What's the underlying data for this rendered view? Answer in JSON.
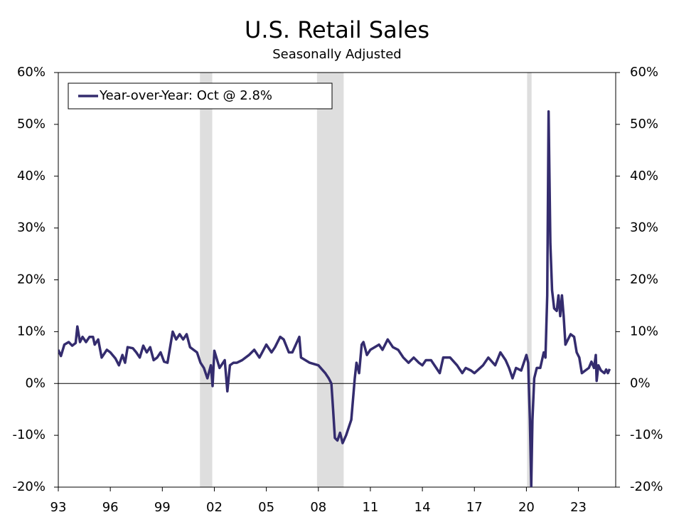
{
  "chart_data": {
    "type": "line",
    "title": "U.S. Retail Sales",
    "subtitle": "Seasonally Adjusted",
    "x": [
      1993.0,
      1993.15,
      1993.35,
      1993.6,
      1993.8,
      1994.0,
      1994.1,
      1994.25,
      1994.4,
      1994.6,
      1994.8,
      1995.0,
      1995.1,
      1995.3,
      1995.5,
      1995.8,
      1996.0,
      1996.3,
      1996.5,
      1996.7,
      1996.85,
      1997.0,
      1997.3,
      1997.5,
      1997.7,
      1997.9,
      1998.1,
      1998.3,
      1998.5,
      1998.7,
      1998.9,
      1999.1,
      1999.3,
      1999.6,
      1999.8,
      2000.0,
      2000.2,
      2000.4,
      2000.6,
      2000.8,
      2001.0,
      2001.2,
      2001.4,
      2001.6,
      2001.8,
      2001.9,
      2002.0,
      2002.3,
      2002.6,
      2002.75,
      2002.9,
      2003.1,
      2003.3,
      2003.6,
      2004.0,
      2004.3,
      2004.6,
      2005.0,
      2005.3,
      2005.5,
      2005.8,
      2006.0,
      2006.3,
      2006.5,
      2006.9,
      2007.0,
      2007.5,
      2008.0,
      2008.4,
      2008.6,
      2008.75,
      2008.85,
      2008.95,
      2009.1,
      2009.25,
      2009.4,
      2009.6,
      2009.9,
      2010.1,
      2010.2,
      2010.35,
      2010.5,
      2010.6,
      2010.8,
      2011.0,
      2011.5,
      2011.7,
      2012.0,
      2012.3,
      2012.6,
      2012.9,
      2013.2,
      2013.5,
      2013.8,
      2014.0,
      2014.2,
      2014.5,
      2014.8,
      2015.0,
      2015.2,
      2015.6,
      2016.0,
      2016.3,
      2016.5,
      2016.8,
      2017.0,
      2017.5,
      2017.8,
      2018.2,
      2018.5,
      2018.8,
      2019.0,
      2019.2,
      2019.4,
      2019.7,
      2020.0,
      2020.1,
      2020.2,
      2020.28,
      2020.35,
      2020.45,
      2020.6,
      2020.8,
      2021.0,
      2021.1,
      2021.2,
      2021.28,
      2021.38,
      2021.48,
      2021.6,
      2021.75,
      2021.85,
      2021.95,
      2022.05,
      2022.15,
      2022.25,
      2022.4,
      2022.55,
      2022.75,
      2022.9,
      2023.05,
      2023.2,
      2023.4,
      2023.6,
      2023.75,
      2023.9,
      2024.0,
      2024.05,
      2024.15,
      2024.3,
      2024.5,
      2024.6,
      2024.7,
      2024.8
    ],
    "series": [
      {
        "name": "Year-over-Year: Oct @ 2.8%",
        "color": "#342c6e",
        "values": [
          6.5,
          5.3,
          7.5,
          8,
          7.3,
          7.8,
          11,
          8,
          9,
          8,
          9,
          9,
          7.5,
          8.5,
          5,
          6.5,
          6,
          4.8,
          3.5,
          5.5,
          4,
          7,
          6.8,
          6,
          5,
          7.3,
          6,
          7,
          4.5,
          5,
          6,
          4.2,
          4,
          10,
          8.5,
          9.5,
          8.5,
          9.5,
          7,
          6.5,
          6,
          4,
          3,
          1,
          3.5,
          -0.5,
          6.3,
          3,
          4.5,
          -1.5,
          3.5,
          4,
          4,
          4.5,
          5.5,
          6.5,
          5,
          7.5,
          6,
          7,
          9,
          8.5,
          6,
          6,
          9,
          5,
          4,
          3.5,
          2,
          1,
          0,
          -5,
          -10.5,
          -11,
          -9.5,
          -11.5,
          -10,
          -7,
          1,
          4,
          2,
          7.5,
          8,
          5.5,
          6.5,
          7.5,
          6.5,
          8.5,
          7,
          6.5,
          5,
          4,
          5,
          4,
          3.5,
          4.5,
          4.5,
          3,
          2,
          5,
          5,
          3.5,
          2,
          3,
          2.5,
          2,
          3.5,
          5,
          3.5,
          6,
          4.5,
          3,
          1,
          3,
          2.5,
          5.5,
          4,
          -7,
          -19.9,
          -7,
          1,
          3,
          3,
          6,
          5,
          17,
          52.5,
          27,
          18,
          14.5,
          14,
          17,
          13,
          17,
          13,
          7.5,
          8.5,
          9.5,
          9,
          6,
          5,
          2,
          2.5,
          3,
          4.2,
          3,
          5.5,
          0.5,
          3.5,
          2.5,
          2,
          2.7,
          2,
          2.8
        ]
      }
    ],
    "recessions": [
      [
        2001.17,
        2001.88
      ],
      [
        2007.92,
        2009.46
      ],
      [
        2020.04,
        2020.3
      ]
    ],
    "xlim": [
      1993,
      2025.15
    ],
    "xticks": [
      {
        "value": 1993,
        "label": "93"
      },
      {
        "value": 1996,
        "label": "96"
      },
      {
        "value": 1999,
        "label": "99"
      },
      {
        "value": 2002,
        "label": "02"
      },
      {
        "value": 2005,
        "label": "05"
      },
      {
        "value": 2008,
        "label": "08"
      },
      {
        "value": 2011,
        "label": "11"
      },
      {
        "value": 2014,
        "label": "14"
      },
      {
        "value": 2017,
        "label": "17"
      },
      {
        "value": 2020,
        "label": "20"
      },
      {
        "value": 2023,
        "label": "23"
      }
    ],
    "ylim": [
      -20,
      60
    ],
    "yticks": [
      {
        "value": -20,
        "label": "-20%"
      },
      {
        "value": -10,
        "label": "-10%"
      },
      {
        "value": 0,
        "label": "0%"
      },
      {
        "value": 10,
        "label": "10%"
      },
      {
        "value": 20,
        "label": "20%"
      },
      {
        "value": 30,
        "label": "30%"
      },
      {
        "value": 40,
        "label": "40%"
      },
      {
        "value": 50,
        "label": "50%"
      },
      {
        "value": 60,
        "label": "60%"
      }
    ],
    "y2lim": [
      -20,
      60
    ],
    "y2ticks": [
      {
        "value": -20,
        "label": "-20%"
      },
      {
        "value": -10,
        "label": "-10%"
      },
      {
        "value": 0,
        "label": "0%"
      },
      {
        "value": 10,
        "label": "10%"
      },
      {
        "value": 20,
        "label": "20%"
      },
      {
        "value": 30,
        "label": "30%"
      },
      {
        "value": 40,
        "label": "40%"
      },
      {
        "value": 50,
        "label": "50%"
      },
      {
        "value": 60,
        "label": "60%"
      }
    ],
    "legend": "top-left"
  }
}
